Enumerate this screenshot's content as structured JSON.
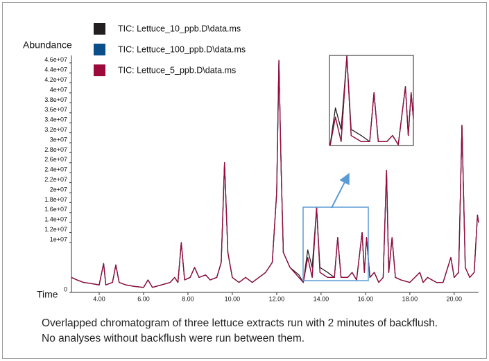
{
  "chart_data": {
    "type": "line",
    "y_label": "Abundance",
    "x_label": "Time",
    "caption": "Overlapped chromatogram of three lettuce extracts run with 2 minutes of backflush. No analyses without backflush were run between them.",
    "x": [
      2.75,
      3.0,
      3.3,
      3.6,
      4.0,
      4.2,
      4.3,
      4.6,
      4.75,
      4.9,
      5.2,
      5.6,
      6.0,
      6.2,
      6.4,
      6.8,
      7.2,
      7.4,
      7.55,
      7.7,
      7.85,
      8.1,
      8.3,
      8.5,
      8.8,
      9.0,
      9.3,
      9.5,
      9.65,
      9.8,
      10.0,
      10.3,
      10.6,
      10.9,
      11.2,
      11.5,
      11.8,
      12.0,
      12.1,
      12.2,
      12.3,
      12.6,
      13.0,
      13.2,
      13.4,
      13.6,
      13.8,
      13.95,
      14.3,
      14.6,
      14.75,
      14.9,
      15.2,
      15.4,
      15.6,
      15.85,
      15.95,
      16.05,
      16.2,
      16.4,
      16.6,
      16.8,
      16.95,
      17.05,
      17.2,
      17.35,
      17.6,
      18.0,
      18.45,
      18.6,
      18.8,
      19.2,
      19.5,
      19.85,
      20.0,
      20.2,
      20.35,
      20.5,
      20.7,
      20.9,
      21.05,
      21.1
    ],
    "series": [
      {
        "name": "TIC: Lettuce_10_ppb.D\\data.ms",
        "color": "#231f20",
        "values": [
          3000000,
          2500000,
          2000000,
          1800000,
          1500000,
          5800000,
          1500000,
          2000000,
          5500000,
          2000000,
          1500000,
          1200000,
          1000000,
          2500000,
          1000000,
          1500000,
          2000000,
          3000000,
          2000000,
          10000000,
          2500000,
          3000000,
          5000000,
          3000000,
          3500000,
          2500000,
          3000000,
          6000000,
          26000000,
          8000000,
          3000000,
          2000000,
          3000000,
          2000000,
          3000000,
          4000000,
          6000000,
          20000000,
          46500000,
          25000000,
          8000000,
          5000000,
          3500000,
          2000000,
          8500000,
          5000000,
          17000000,
          5000000,
          4000000,
          3000000,
          11000000,
          3000000,
          3000000,
          4000000,
          2500000,
          12000000,
          4000000,
          11000000,
          3000000,
          4000000,
          2000000,
          3000000,
          24500000,
          4000000,
          11000000,
          3000000,
          2500000,
          2000000,
          4000000,
          2000000,
          3000000,
          2000000,
          2000000,
          7000000,
          3000000,
          4000000,
          33500000,
          5000000,
          3000000,
          4000000,
          15500000,
          14000000
        ]
      },
      {
        "name": "TIC: Lettuce_100_ppb.D\\data.ms",
        "color": "#0b4f8a",
        "values": [
          3000000,
          2500000,
          2000000,
          1800000,
          1500000,
          5800000,
          1500000,
          2000000,
          5500000,
          2000000,
          1500000,
          1200000,
          1000000,
          2500000,
          1000000,
          1500000,
          2000000,
          3000000,
          2000000,
          10000000,
          2500000,
          3000000,
          5000000,
          3000000,
          3500000,
          2500000,
          3000000,
          6000000,
          26000000,
          8000000,
          3000000,
          2000000,
          3000000,
          2000000,
          3000000,
          4000000,
          6000000,
          20000000,
          46500000,
          25000000,
          8000000,
          5000000,
          3000000,
          2000000,
          7000000,
          3000000,
          17000000,
          4000000,
          3000000,
          3000000,
          11000000,
          3000000,
          3000000,
          4000000,
          2500000,
          12000000,
          4000000,
          11000000,
          3000000,
          4000000,
          2000000,
          3000000,
          24500000,
          4000000,
          11000000,
          3000000,
          2500000,
          2000000,
          4000000,
          2000000,
          3000000,
          2000000,
          2000000,
          7000000,
          3000000,
          4000000,
          33500000,
          5000000,
          3000000,
          4000000,
          15500000,
          14000000
        ]
      },
      {
        "name": "TIC: Lettuce_5_ppb.D\\data.ms",
        "color": "#9b0a3a",
        "values": [
          3000000,
          2500000,
          2000000,
          1800000,
          1500000,
          5800000,
          1500000,
          2000000,
          5500000,
          2000000,
          1500000,
          1200000,
          1000000,
          2500000,
          1000000,
          1500000,
          2000000,
          3000000,
          2000000,
          10000000,
          2500000,
          3000000,
          5000000,
          3000000,
          3500000,
          2500000,
          3000000,
          6000000,
          26000000,
          8000000,
          3000000,
          2000000,
          3000000,
          2000000,
          3000000,
          4000000,
          6000000,
          20000000,
          46500000,
          25000000,
          8000000,
          5000000,
          3000000,
          2000000,
          7000000,
          3000000,
          17000000,
          4000000,
          3000000,
          3000000,
          11000000,
          3000000,
          3000000,
          4000000,
          2500000,
          12000000,
          4000000,
          11000000,
          3000000,
          4000000,
          2000000,
          3000000,
          24500000,
          4000000,
          11000000,
          3000000,
          2500000,
          2000000,
          4000000,
          2000000,
          3000000,
          2000000,
          2000000,
          7000000,
          3000000,
          4000000,
          33500000,
          5000000,
          3000000,
          4000000,
          15500000,
          14000000
        ]
      }
    ],
    "xlim": [
      2.75,
      21.1
    ],
    "xticks": [
      {
        "value": 4,
        "label": "4.00"
      },
      {
        "value": 6,
        "label": "6.00"
      },
      {
        "value": 8,
        "label": "8.00"
      },
      {
        "value": 10,
        "label": "10.00"
      },
      {
        "value": 12,
        "label": "12.00"
      },
      {
        "value": 14,
        "label": "14.00"
      },
      {
        "value": 16,
        "label": "16.00"
      },
      {
        "value": 18,
        "label": "18.00"
      },
      {
        "value": 20,
        "label": "20.00"
      }
    ],
    "ylim": [
      0,
      47500000
    ],
    "yticks": [
      0,
      {
        "value": 10000000,
        "label": "1e+07"
      },
      {
        "value": 12000000,
        "label": "1.2e+07"
      },
      {
        "value": 14000000,
        "label": "1.4e+07"
      },
      {
        "value": 16000000,
        "label": "1.6e+07"
      },
      {
        "value": 18000000,
        "label": "1.8e+07"
      },
      {
        "value": 20000000,
        "label": "2e+07"
      },
      {
        "value": 22000000,
        "label": "2.2e+07"
      },
      {
        "value": 24000000,
        "label": "2.4e+07"
      },
      {
        "value": 26000000,
        "label": "2.6e+07"
      },
      {
        "value": 28000000,
        "label": "2.8e+07"
      },
      {
        "value": 30000000,
        "label": "3e+07"
      },
      {
        "value": 32000000,
        "label": "3.2e+07"
      },
      {
        "value": 34000000,
        "label": "3.4e+07"
      },
      {
        "value": 36000000,
        "label": "3.6e+07"
      },
      {
        "value": 38000000,
        "label": "3.8e+07"
      },
      {
        "value": 40000000,
        "label": "4e+07"
      },
      {
        "value": 42000000,
        "label": "4.2e+07"
      },
      {
        "value": 44000000,
        "label": "4.4e+07"
      },
      {
        "value": 46000000,
        "label": "4.6e+07"
      }
    ],
    "legend": "upper left"
  }
}
